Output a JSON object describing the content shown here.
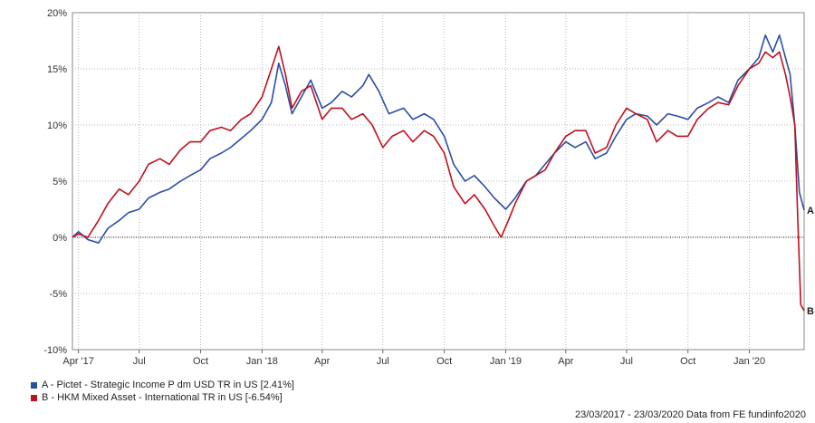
{
  "chart_data": {
    "type": "line",
    "y_ticks": [
      "20%",
      "15%",
      "10%",
      "5%",
      "0%",
      "-5%",
      "-10%"
    ],
    "y_tick_values": [
      20,
      15,
      10,
      5,
      0,
      -5,
      -10
    ],
    "ylim": [
      -10,
      20
    ],
    "x_ticks": [
      "Apr '17",
      "Jul",
      "Oct",
      "Jan '18",
      "Apr",
      "Jul",
      "Oct",
      "Jan '19",
      "Apr",
      "Jul",
      "Oct",
      "Jan '20"
    ],
    "x_tick_dates": [
      "2017-04-01",
      "2017-07-01",
      "2017-10-01",
      "2018-01-01",
      "2018-04-01",
      "2018-07-01",
      "2018-10-01",
      "2019-01-01",
      "2019-04-01",
      "2019-07-01",
      "2019-10-01",
      "2020-01-01"
    ],
    "x_range": [
      "2017-03-23",
      "2020-03-23"
    ],
    "grid": true,
    "legend_position": "bottom-left",
    "series": [
      {
        "name": "A - Pictet - Strategic Income P dm USD TR in US [2.41%]",
        "end_label": "A",
        "color": "#2a4ea6",
        "points": [
          [
            "2017-03-23",
            0.0
          ],
          [
            "2017-04-01",
            0.5
          ],
          [
            "2017-04-15",
            -0.2
          ],
          [
            "2017-05-01",
            -0.5
          ],
          [
            "2017-05-15",
            0.8
          ],
          [
            "2017-06-01",
            1.5
          ],
          [
            "2017-06-15",
            2.2
          ],
          [
            "2017-07-01",
            2.5
          ],
          [
            "2017-07-15",
            3.5
          ],
          [
            "2017-08-01",
            4.0
          ],
          [
            "2017-08-15",
            4.3
          ],
          [
            "2017-09-01",
            5.0
          ],
          [
            "2017-09-15",
            5.5
          ],
          [
            "2017-10-01",
            6.0
          ],
          [
            "2017-10-15",
            7.0
          ],
          [
            "2017-11-01",
            7.5
          ],
          [
            "2017-11-15",
            8.0
          ],
          [
            "2017-12-01",
            8.8
          ],
          [
            "2017-12-15",
            9.5
          ],
          [
            "2018-01-01",
            10.5
          ],
          [
            "2018-01-15",
            12.0
          ],
          [
            "2018-01-26",
            15.5
          ],
          [
            "2018-02-05",
            13.5
          ],
          [
            "2018-02-15",
            11.0
          ],
          [
            "2018-03-01",
            12.5
          ],
          [
            "2018-03-15",
            14.0
          ],
          [
            "2018-04-01",
            11.5
          ],
          [
            "2018-04-15",
            12.0
          ],
          [
            "2018-05-01",
            13.0
          ],
          [
            "2018-05-15",
            12.5
          ],
          [
            "2018-06-01",
            13.5
          ],
          [
            "2018-06-10",
            14.5
          ],
          [
            "2018-06-25",
            13.0
          ],
          [
            "2018-07-10",
            11.0
          ],
          [
            "2018-08-01",
            11.5
          ],
          [
            "2018-08-15",
            10.5
          ],
          [
            "2018-09-01",
            11.0
          ],
          [
            "2018-09-15",
            10.5
          ],
          [
            "2018-10-01",
            9.0
          ],
          [
            "2018-10-15",
            6.5
          ],
          [
            "2018-11-01",
            5.0
          ],
          [
            "2018-11-15",
            5.5
          ],
          [
            "2018-12-01",
            4.5
          ],
          [
            "2018-12-15",
            3.5
          ],
          [
            "2019-01-01",
            2.5
          ],
          [
            "2019-01-15",
            3.5
          ],
          [
            "2019-02-01",
            5.0
          ],
          [
            "2019-02-15",
            5.5
          ],
          [
            "2019-03-01",
            6.5
          ],
          [
            "2019-03-15",
            7.5
          ],
          [
            "2019-04-01",
            8.5
          ],
          [
            "2019-04-15",
            8.0
          ],
          [
            "2019-05-01",
            8.5
          ],
          [
            "2019-05-15",
            7.0
          ],
          [
            "2019-06-01",
            7.5
          ],
          [
            "2019-06-15",
            9.0
          ],
          [
            "2019-07-01",
            10.5
          ],
          [
            "2019-07-15",
            11.0
          ],
          [
            "2019-08-01",
            10.8
          ],
          [
            "2019-08-15",
            10.0
          ],
          [
            "2019-09-01",
            11.0
          ],
          [
            "2019-09-15",
            10.8
          ],
          [
            "2019-10-01",
            10.5
          ],
          [
            "2019-10-15",
            11.5
          ],
          [
            "2019-11-01",
            12.0
          ],
          [
            "2019-11-15",
            12.5
          ],
          [
            "2019-12-01",
            12.0
          ],
          [
            "2019-12-15",
            14.0
          ],
          [
            "2020-01-01",
            15.0
          ],
          [
            "2020-01-15",
            16.0
          ],
          [
            "2020-01-25",
            18.0
          ],
          [
            "2020-02-05",
            16.5
          ],
          [
            "2020-02-15",
            18.0
          ],
          [
            "2020-02-24",
            16.0
          ],
          [
            "2020-03-02",
            14.5
          ],
          [
            "2020-03-09",
            10.0
          ],
          [
            "2020-03-16",
            4.0
          ],
          [
            "2020-03-23",
            2.41
          ]
        ]
      },
      {
        "name": "B - HKM Mixed Asset - International TR in US [-6.54%]",
        "end_label": "B",
        "color": "#c0101e",
        "points": [
          [
            "2017-03-23",
            0.0
          ],
          [
            "2017-04-01",
            0.3
          ],
          [
            "2017-04-15",
            0.0
          ],
          [
            "2017-05-01",
            1.5
          ],
          [
            "2017-05-15",
            3.0
          ],
          [
            "2017-06-01",
            4.3
          ],
          [
            "2017-06-15",
            3.8
          ],
          [
            "2017-07-01",
            5.0
          ],
          [
            "2017-07-15",
            6.5
          ],
          [
            "2017-08-01",
            7.0
          ],
          [
            "2017-08-15",
            6.5
          ],
          [
            "2017-09-01",
            7.8
          ],
          [
            "2017-09-15",
            8.5
          ],
          [
            "2017-10-01",
            8.5
          ],
          [
            "2017-10-15",
            9.5
          ],
          [
            "2017-11-01",
            9.8
          ],
          [
            "2017-11-15",
            9.5
          ],
          [
            "2017-12-01",
            10.5
          ],
          [
            "2017-12-15",
            11.0
          ],
          [
            "2018-01-01",
            12.5
          ],
          [
            "2018-01-15",
            15.0
          ],
          [
            "2018-01-26",
            17.0
          ],
          [
            "2018-02-05",
            14.5
          ],
          [
            "2018-02-15",
            11.5
          ],
          [
            "2018-03-01",
            13.0
          ],
          [
            "2018-03-15",
            13.5
          ],
          [
            "2018-04-01",
            10.5
          ],
          [
            "2018-04-15",
            11.5
          ],
          [
            "2018-05-01",
            11.5
          ],
          [
            "2018-05-15",
            10.5
          ],
          [
            "2018-06-01",
            11.0
          ],
          [
            "2018-06-15",
            10.0
          ],
          [
            "2018-07-01",
            8.0
          ],
          [
            "2018-07-15",
            9.0
          ],
          [
            "2018-08-01",
            9.5
          ],
          [
            "2018-08-15",
            8.5
          ],
          [
            "2018-09-01",
            9.5
          ],
          [
            "2018-09-15",
            9.0
          ],
          [
            "2018-10-01",
            7.5
          ],
          [
            "2018-10-15",
            4.5
          ],
          [
            "2018-11-01",
            3.0
          ],
          [
            "2018-11-15",
            3.8
          ],
          [
            "2018-12-01",
            2.5
          ],
          [
            "2018-12-15",
            1.0
          ],
          [
            "2018-12-25",
            0.0
          ],
          [
            "2019-01-05",
            1.5
          ],
          [
            "2019-01-15",
            3.0
          ],
          [
            "2019-02-01",
            5.0
          ],
          [
            "2019-02-15",
            5.5
          ],
          [
            "2019-03-01",
            6.0
          ],
          [
            "2019-03-15",
            7.5
          ],
          [
            "2019-04-01",
            9.0
          ],
          [
            "2019-04-15",
            9.5
          ],
          [
            "2019-05-01",
            9.5
          ],
          [
            "2019-05-15",
            7.5
          ],
          [
            "2019-06-01",
            8.0
          ],
          [
            "2019-06-15",
            10.0
          ],
          [
            "2019-07-01",
            11.5
          ],
          [
            "2019-07-15",
            11.0
          ],
          [
            "2019-08-01",
            10.5
          ],
          [
            "2019-08-15",
            8.5
          ],
          [
            "2019-09-01",
            9.5
          ],
          [
            "2019-09-15",
            9.0
          ],
          [
            "2019-10-01",
            9.0
          ],
          [
            "2019-10-15",
            10.5
          ],
          [
            "2019-11-01",
            11.5
          ],
          [
            "2019-11-15",
            12.0
          ],
          [
            "2019-12-01",
            11.8
          ],
          [
            "2019-12-15",
            13.5
          ],
          [
            "2020-01-01",
            15.0
          ],
          [
            "2020-01-15",
            15.5
          ],
          [
            "2020-01-25",
            16.5
          ],
          [
            "2020-02-05",
            16.0
          ],
          [
            "2020-02-15",
            16.5
          ],
          [
            "2020-02-24",
            14.5
          ],
          [
            "2020-03-02",
            12.5
          ],
          [
            "2020-03-09",
            10.0
          ],
          [
            "2020-03-13",
            2.5
          ],
          [
            "2020-03-18",
            -6.0
          ],
          [
            "2020-03-23",
            -6.54
          ]
        ]
      }
    ]
  },
  "legend": [
    {
      "label": "A - Pictet - Strategic Income P dm USD TR in US [2.41%]",
      "color": "#2a4ea6"
    },
    {
      "label": "B - HKM Mixed Asset - International TR in US [-6.54%]",
      "color": "#c0101e"
    }
  ],
  "footer": "23/03/2017 - 23/03/2020 Data from FE fundinfo2020"
}
